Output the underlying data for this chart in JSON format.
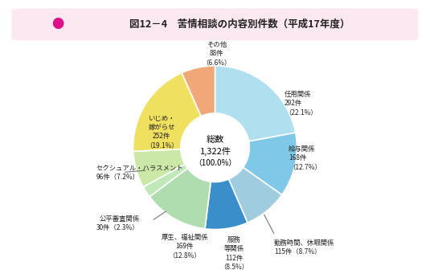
{
  "title_dot": "●",
  "title_text": "図12－4　苦情相談の内容別件数（平成17年度）",
  "center_line1": "総数",
  "center_line2": "1,322件",
  "center_line3": "（100.0%）",
  "slices": [
    {
      "label": "任用関係\n292件\n（22.1%）",
      "value": 292,
      "color": "#b0e0f0"
    },
    {
      "label": "給与関係\n168件\n（12.7%）",
      "value": 168,
      "color": "#80c8e8"
    },
    {
      "label": "勤務時間、休暇関係\n115件（8.7%）",
      "value": 115,
      "color": "#a0cce0"
    },
    {
      "label": "服務\n等関係\n112件\n（8.5%）",
      "value": 112,
      "color": "#3a8fcb"
    },
    {
      "label": "厚生、福祉関係\n169件\n（12.8%）",
      "value": 169,
      "color": "#b0ddb0"
    },
    {
      "label": "公平審査関係\n30件（2.3%）",
      "value": 30,
      "color": "#c0e8b8"
    },
    {
      "label": "セクシュアル・ハラスメント\n96件（7.2%）",
      "value": 96,
      "color": "#cce8a8"
    },
    {
      "label": "いじめ・\n嫁がらせ\n252件\n（19.1%）",
      "value": 252,
      "color": "#f0e060"
    },
    {
      "label": "その他\n88件\n（6.6%）",
      "value": 88,
      "color": "#f0a878"
    }
  ],
  "background_color": "#ffffff",
  "title_bg_color": "#fce8f0",
  "title_dot_color": "#dd1188",
  "title_text_color": "#222222",
  "wedge_edge_color": "#ffffff",
  "wedge_linewidth": 1.2,
  "donut_inner_ratio": 0.42
}
